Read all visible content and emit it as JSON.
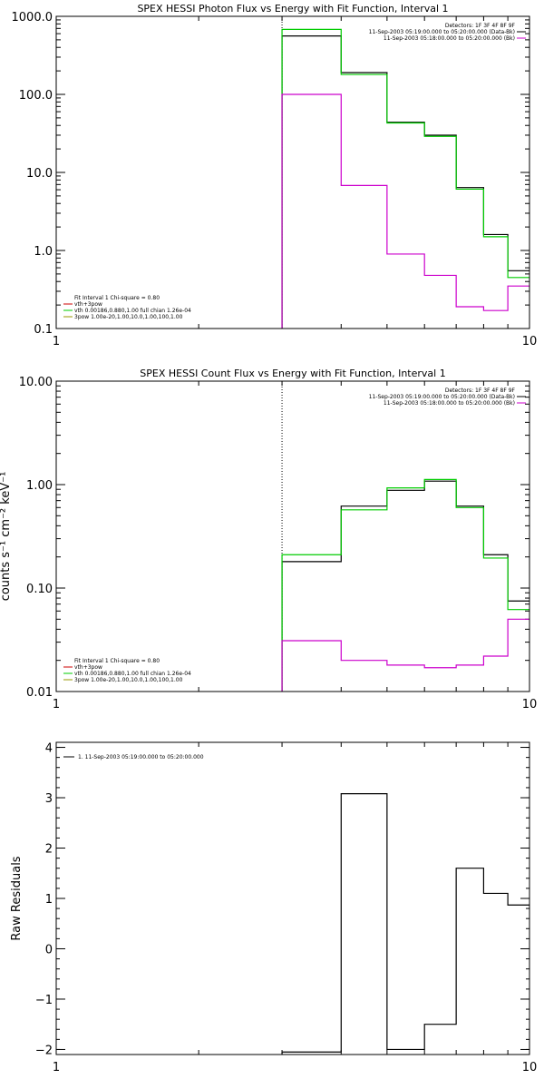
{
  "colors": {
    "axes": "#000000",
    "black": "#000000",
    "green": "#00cc00",
    "magenta": "#cc00cc",
    "red": "#cc0000",
    "olive": "#999900",
    "dotted": "#000000"
  },
  "chart_data": [
    {
      "type": "line",
      "title": "SPEX HESSI Photon Flux vs Energy with Fit Function, Interval 1",
      "xlabel": "",
      "ylabel": "",
      "xscale": "log",
      "yscale": "log",
      "xlim": [
        1,
        10
      ],
      "ylim": [
        0.1,
        1000
      ],
      "xticks": [
        1,
        10
      ],
      "xtick_labels": [
        "1",
        "10"
      ],
      "yticks": [
        0.1,
        1,
        10,
        100,
        1000
      ],
      "ytick_labels": [
        "0.1",
        "1.0",
        "10.0",
        "100.0",
        "1000.0"
      ],
      "vline_x": 3,
      "legend_tr": [
        "Detectors: 1F 3F 4F 8F 9F",
        "11-Sep-2003 05:19:00.000 to 05:20:00.000 (Data-Bk)",
        "11-Sep-2003 05:18:00.000 to 05:20:00.000 (Bk)"
      ],
      "legend_bl": [
        "Fit Interval 1   Chi-square = 0.80",
        "vth+3pow",
        "vth 0.00186,0.880,1.00  full chian 1.26e-04",
        "3pow 1.00e-20,1.00,10.0,1.00,100,1.00"
      ],
      "edges": [
        3,
        4,
        5,
        6,
        7,
        8,
        9,
        10
      ],
      "series": [
        {
          "name": "Data-Bk",
          "color": "black",
          "values": [
            560,
            190,
            44,
            30,
            6.4,
            1.6,
            0.55
          ]
        },
        {
          "name": "vth+3pow",
          "color": "green",
          "values": [
            680,
            180,
            43,
            29,
            6.1,
            1.5,
            0.45
          ]
        },
        {
          "name": "Bk",
          "color": "magenta",
          "values": [
            100,
            6.8,
            0.9,
            0.48,
            0.19,
            0.17,
            0.35
          ]
        }
      ]
    },
    {
      "type": "line",
      "title": "SPEX HESSI Count Flux vs Energy with Fit Function, Interval 1",
      "xlabel": "",
      "ylabel": "counts s⁻¹ cm⁻² keV⁻¹",
      "xscale": "log",
      "yscale": "log",
      "xlim": [
        1,
        10
      ],
      "ylim": [
        0.01,
        10
      ],
      "xticks": [
        1,
        10
      ],
      "xtick_labels": [
        "1",
        "10"
      ],
      "yticks": [
        0.01,
        0.1,
        1,
        10
      ],
      "ytick_labels": [
        "0.01",
        "0.10",
        "1.00",
        "10.00"
      ],
      "vline_x": 3,
      "legend_tr": [
        "Detectors: 1F 3F 4F 8F 9F",
        "11-Sep-2003 05:19:00.000 to 05:20:00.000 (Data-Bk)",
        "11-Sep-2003 05:18:00.000 to 05:20:00.000 (Bk)"
      ],
      "legend_bl": [
        "Fit Interval 1   Chi-square = 0.80",
        "vth+3pow",
        "vth 0.00186,0.880,1.00  full chian 1.26e-04",
        "3pow 1.00e-20,1.00,10.0,1.00,100,1.00"
      ],
      "edges": [
        3,
        4,
        5,
        6,
        7,
        8,
        9,
        10
      ],
      "series": [
        {
          "name": "Data-Bk",
          "color": "black",
          "values": [
            0.18,
            0.62,
            0.88,
            1.08,
            0.62,
            0.21,
            0.075
          ]
        },
        {
          "name": "vth+3pow",
          "color": "green",
          "values": [
            0.21,
            0.57,
            0.93,
            1.12,
            0.6,
            0.195,
            0.062
          ]
        },
        {
          "name": "Bk",
          "color": "magenta",
          "values": [
            0.031,
            0.02,
            0.018,
            0.017,
            0.018,
            0.022,
            0.05
          ]
        }
      ]
    },
    {
      "type": "line",
      "title": "",
      "xlabel": "",
      "ylabel": "Raw Residuals",
      "xscale": "log",
      "yscale": "linear",
      "xlim": [
        1,
        10
      ],
      "ylim": [
        -2.1,
        4.1
      ],
      "xticks": [
        1,
        10
      ],
      "xtick_labels": [
        "1",
        "10"
      ],
      "yticks": [
        -2,
        -1,
        0,
        1,
        2,
        3,
        4
      ],
      "ytick_labels": [
        "−2",
        "−1",
        "0",
        "1",
        "2",
        "3",
        "4"
      ],
      "legend_tl": [
        "1. 11-Sep-2003 05:19:00.000 to 05:20:00.000"
      ],
      "edges": [
        3,
        4,
        5,
        6,
        7,
        8,
        9,
        10
      ],
      "series": [
        {
          "name": "1. 11-Sep-2003 05:19:00.000 to 05:20:00.000",
          "color": "black",
          "values": [
            -2.05,
            3.08,
            -2.0,
            -1.5,
            1.6,
            1.1,
            0.87
          ]
        }
      ]
    }
  ]
}
